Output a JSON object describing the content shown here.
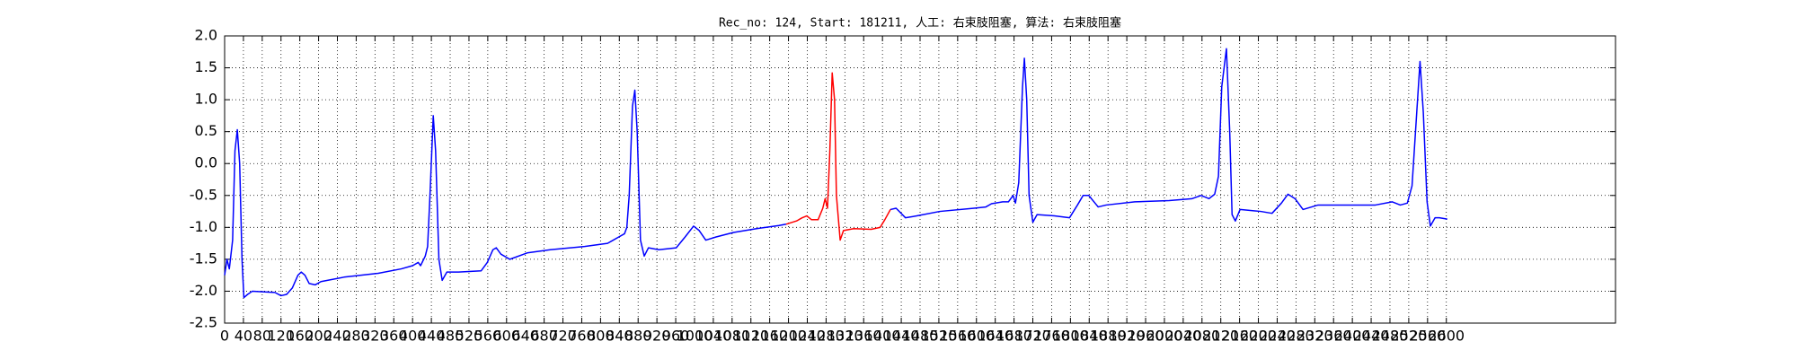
{
  "chart_data": {
    "type": "line",
    "title": "Rec_no: 124, Start: 181211, 人工: 右束肢阻塞, 算法: 右束肢阻塞",
    "x": [
      0,
      5,
      10,
      17,
      22,
      27,
      32,
      37,
      41,
      49,
      59,
      107,
      120,
      132,
      144,
      156,
      163,
      171,
      180,
      193,
      205,
      254,
      327,
      376,
      400,
      412,
      417,
      427,
      432,
      437,
      444,
      449,
      456,
      463,
      473,
      498,
      546,
      559,
      571,
      578,
      588,
      607,
      644,
      693,
      766,
      815,
      827,
      839,
      851,
      856,
      861,
      868,
      873,
      878,
      885,
      893,
      902,
      924,
      961,
      980,
      998,
      1010,
      1024,
      1046,
      1083,
      1132,
      1180,
      1195,
      1217,
      1229,
      1239,
      1249,
      1263,
      1273,
      1278,
      1283,
      1288,
      1293,
      1298,
      1302,
      1310,
      1317,
      1339,
      1376,
      1395,
      1405,
      1417,
      1429,
      1449,
      1473,
      1522,
      1595,
      1620,
      1632,
      1656,
      1668,
      1678,
      1683,
      1690,
      1698,
      1702,
      1707,
      1712,
      1720,
      1729,
      1766,
      1798,
      1815,
      1827,
      1839,
      1859,
      1876,
      1937,
      2010,
      2059,
      2078,
      2095,
      2107,
      2115,
      2122,
      2132,
      2139,
      2144,
      2151,
      2161,
      2205,
      2229,
      2249,
      2263,
      2278,
      2295,
      2327,
      2449,
      2485,
      2502,
      2517,
      2527,
      2537,
      2544,
      2551,
      2559,
      2566,
      2576,
      2585,
      2602
    ],
    "series": [
      {
        "color": "#0000ff",
        "values": [
          -1.75,
          -1.5,
          -1.65,
          -1.2,
          0.2,
          0.53,
          0.0,
          -1.5,
          -2.1,
          -2.05,
          -2.0,
          -2.02,
          -2.07,
          -2.05,
          -1.95,
          -1.75,
          -1.7,
          -1.75,
          -1.88,
          -1.9,
          -1.85,
          -1.78,
          -1.72,
          -1.65,
          -1.6,
          -1.55,
          -1.6,
          -1.45,
          -1.3,
          -0.5,
          0.75,
          0.2,
          -1.5,
          -1.83,
          -1.7,
          -1.7,
          -1.68,
          -1.55,
          -1.35,
          -1.32,
          -1.42,
          -1.5,
          -1.4,
          -1.35,
          -1.3,
          -1.25,
          -1.2,
          -1.15,
          -1.1,
          -1.0,
          -0.5,
          0.9,
          1.15,
          0.5,
          -1.2,
          -1.45,
          -1.32,
          -1.35,
          -1.32,
          -1.15,
          -0.98,
          -1.05,
          -1.2,
          -1.15,
          -1.08,
          -1.02,
          -0.97,
          -0.95,
          null,
          null,
          null,
          null,
          null,
          null,
          null,
          null,
          null,
          null,
          null,
          null,
          null,
          null,
          null,
          null,
          null,
          null,
          -0.72,
          -0.7,
          -0.85,
          -0.82,
          -0.75,
          -0.7,
          -0.68,
          -0.63,
          -0.6,
          -0.6,
          -0.5,
          -0.62,
          -0.3,
          1.2,
          1.65,
          1.0,
          -0.5,
          -0.92,
          -0.8,
          -0.82,
          -0.85,
          -0.65,
          -0.5,
          -0.5,
          -0.68,
          -0.65,
          -0.6,
          -0.58,
          -0.55,
          -0.5,
          -0.55,
          -0.48,
          -0.2,
          1.2,
          1.8,
          0.5,
          -0.8,
          -0.9,
          -0.72,
          -0.75,
          -0.78,
          -0.62,
          -0.48,
          -0.55,
          -0.72,
          -0.65,
          -0.65,
          -0.6,
          -0.65,
          -0.62,
          -0.35,
          0.8,
          1.6,
          0.8,
          -0.6,
          -0.98,
          -0.85,
          -0.85,
          -0.87
        ]
      },
      {
        "color": "#ff0000",
        "values": [
          null,
          null,
          null,
          null,
          null,
          null,
          null,
          null,
          null,
          null,
          null,
          null,
          null,
          null,
          null,
          null,
          null,
          null,
          null,
          null,
          null,
          null,
          null,
          null,
          null,
          null,
          null,
          null,
          null,
          null,
          null,
          null,
          null,
          null,
          null,
          null,
          null,
          null,
          null,
          null,
          null,
          null,
          null,
          null,
          null,
          null,
          null,
          null,
          null,
          null,
          null,
          null,
          null,
          null,
          null,
          null,
          null,
          null,
          null,
          null,
          null,
          null,
          null,
          null,
          null,
          null,
          null,
          -0.95,
          -0.9,
          -0.85,
          -0.82,
          -0.88,
          -0.88,
          -0.7,
          -0.55,
          -0.7,
          0.2,
          1.42,
          1.0,
          -0.5,
          -1.2,
          -1.05,
          -1.02,
          -1.03,
          -1.0,
          -0.88,
          -0.72,
          null,
          null,
          null,
          null,
          null,
          null,
          null,
          null,
          null,
          null,
          null,
          null,
          null,
          null,
          null,
          null,
          null,
          null,
          null,
          null,
          null,
          null,
          null,
          null,
          null,
          null,
          null,
          null,
          null,
          null,
          null,
          null,
          null,
          null,
          null,
          null,
          null,
          null,
          null,
          null,
          null,
          null,
          null,
          null,
          null,
          null,
          null,
          null,
          null,
          null,
          null,
          null,
          null,
          null,
          null,
          null,
          null,
          null
        ]
      }
    ],
    "xlim": [
      0,
      2960
    ],
    "xticks": [
      0,
      40,
      80,
      120,
      160,
      200,
      240,
      280,
      320,
      360,
      400,
      440,
      480,
      520,
      560,
      600,
      640,
      680,
      720,
      760,
      800,
      840,
      880,
      920,
      960,
      1000,
      1040,
      1080,
      1120,
      1160,
      1200,
      1240,
      1280,
      1320,
      1360,
      1400,
      1440,
      1480,
      1520,
      1560,
      1600,
      1640,
      1680,
      1720,
      1760,
      1800,
      1840,
      1880,
      1920,
      1960,
      2000,
      2040,
      2080,
      2120,
      2160,
      2200,
      2240,
      2280,
      2320,
      2360,
      2400,
      2440,
      2480,
      2520,
      2560,
      2600
    ],
    "ylim": [
      -2.5,
      2.0
    ],
    "yticks": [
      {
        "value": 2.0,
        "label": "2.0"
      },
      1.5,
      {
        "value": 1.0,
        "label": "1.0"
      },
      0.5,
      {
        "value": 0.0,
        "label": "0.0"
      },
      -0.5,
      {
        "value": -1.0,
        "label": "-1.0"
      },
      -1.5,
      {
        "value": -2.0,
        "label": "-2.0"
      },
      -2.5
    ],
    "grid": true
  }
}
